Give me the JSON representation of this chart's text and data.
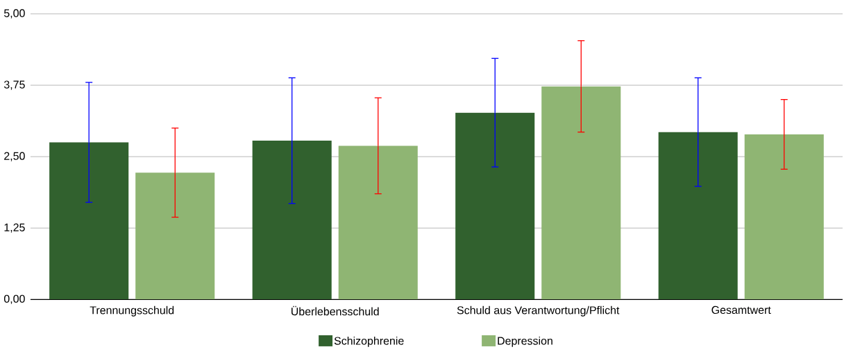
{
  "chart_data": {
    "type": "bar",
    "categories": [
      "Trennungsschuld",
      "Überlebensschuld",
      "Schuld aus Verantwortung/Pflicht",
      "Gesamtwert"
    ],
    "series": [
      {
        "name": "Schizophrenie",
        "color": "#31612e",
        "values": [
          2.75,
          2.78,
          3.27,
          2.93
        ],
        "errors": [
          1.05,
          1.1,
          0.95,
          0.95
        ]
      },
      {
        "name": "Depression",
        "color": "#8fb573",
        "values": [
          2.22,
          2.69,
          3.73,
          2.89
        ],
        "errors": [
          0.78,
          0.84,
          0.8,
          0.61
        ]
      }
    ],
    "ylim": [
      0,
      5
    ],
    "yticks": [
      {
        "value": 0,
        "label": "0,00"
      },
      {
        "value": 1.25,
        "label": "1,25"
      },
      {
        "value": 2.5,
        "label": "2,50"
      },
      {
        "value": 3.75,
        "label": "3,75"
      },
      {
        "value": 5,
        "label": "5,00"
      }
    ],
    "grid": "y",
    "legend": "bottom"
  }
}
